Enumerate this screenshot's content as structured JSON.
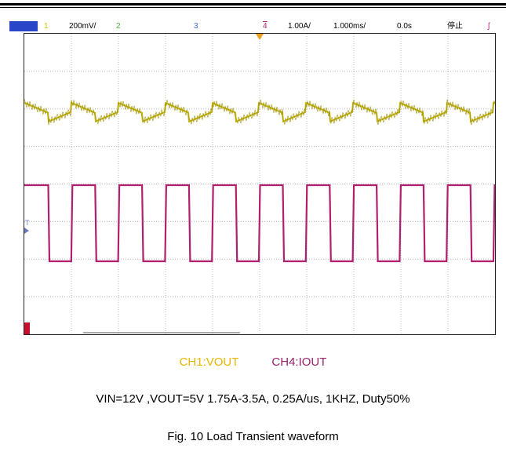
{
  "status_bar": {
    "ch1_num": "1",
    "ch1_scale": "200mV/",
    "ch2_num": "2",
    "ch3_num": "3",
    "ch4_num": "4",
    "ch4_scale": "1.00A/",
    "timebase": "1.000ms/",
    "delay": "0.0s",
    "run_state": "停止"
  },
  "markers": {
    "trigger_level": "T"
  },
  "caption": {
    "ch1_legend": "CH1:VOUT",
    "ch4_legend": "CH4:IOUT",
    "conditions": "VIN=12V ,VOUT=5V 1.75A-3.5A, 0.25A/us, 1KHZ, Duty50%",
    "figure": "Fig. 10 Load Transient waveform"
  },
  "colors": {
    "ch1": "#c4b40a",
    "ch4": "#b01f6e",
    "ch2": "#4bb33a",
    "ch3": "#3a6bc9",
    "ch4_label": "#b01f6e"
  }
}
